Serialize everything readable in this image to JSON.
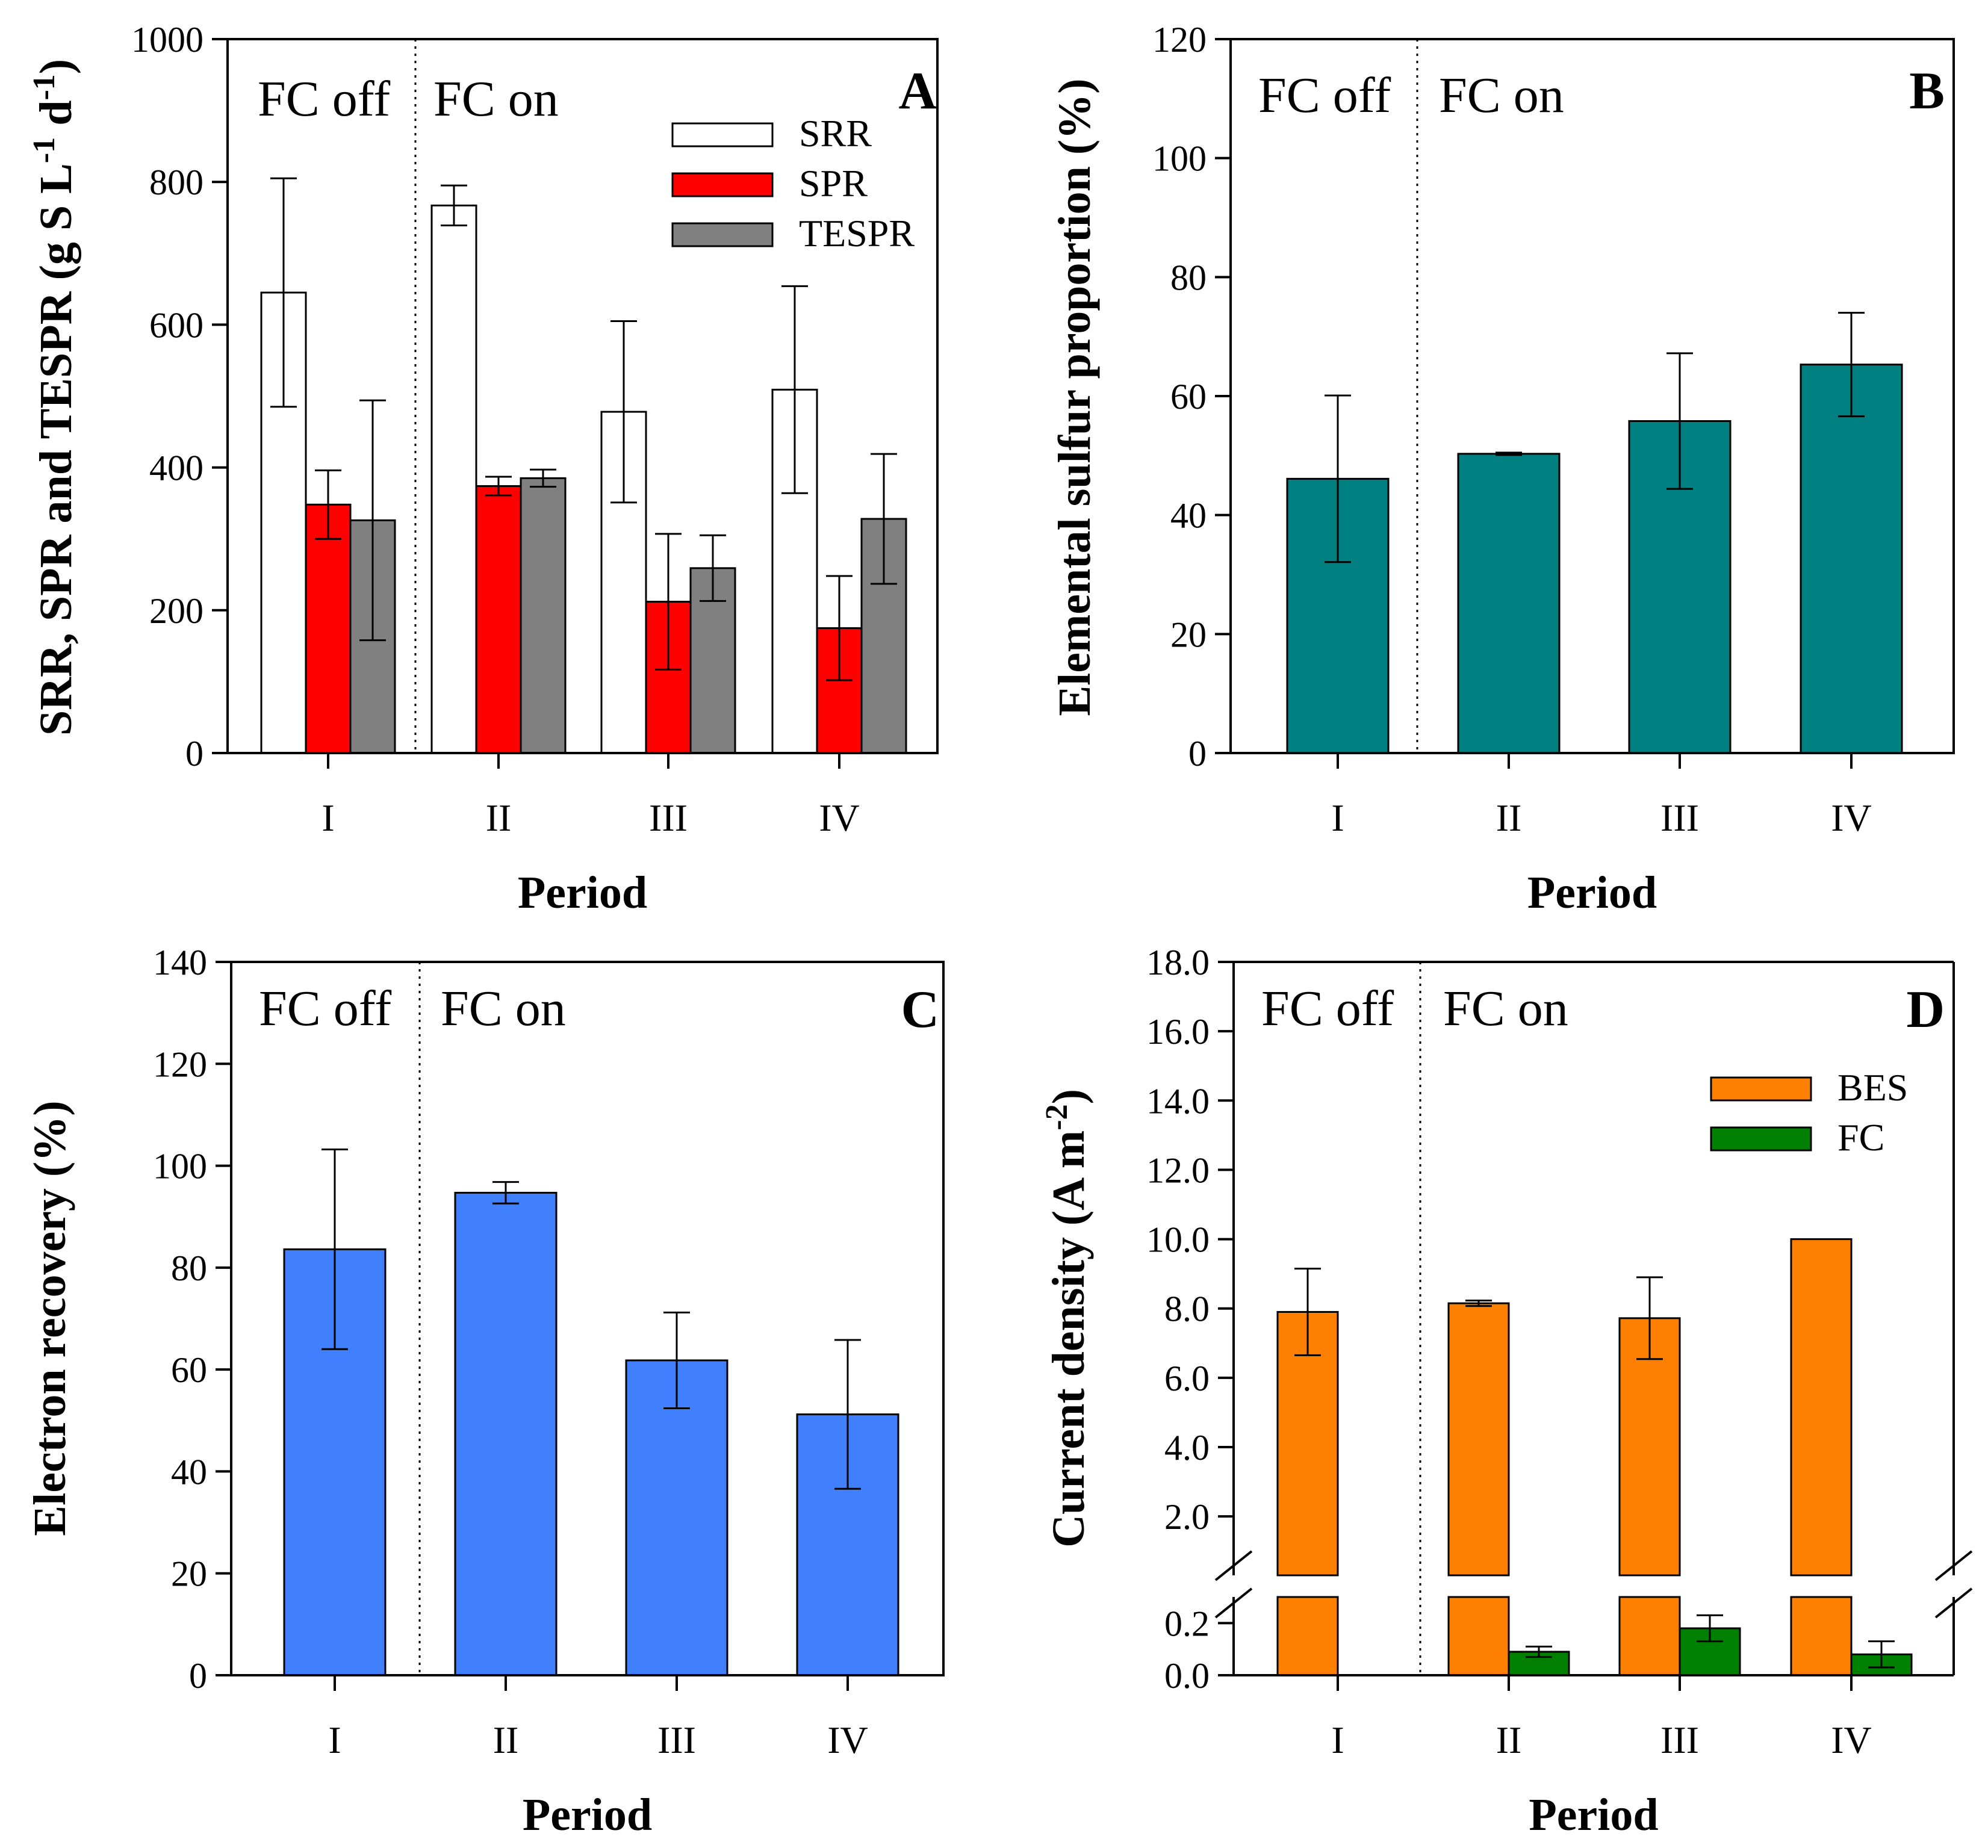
{
  "chart_data": [
    {
      "panel": "A",
      "type": "bar",
      "ylabel": "SRR, SPR and TESPR (g S L-1 d-1)",
      "ylabel_parts": {
        "base": "SRR, SPR and TESPR (g S L",
        "sup1": "-1",
        "mid": " d",
        "sup2": "-1",
        "end": ")"
      },
      "xlabel": "Period",
      "ylim": [
        0,
        1000
      ],
      "yticks": [
        "0",
        "200",
        "400",
        "600",
        "800",
        "1000"
      ],
      "categories": [
        "I",
        "II",
        "III",
        "IV"
      ],
      "series": [
        {
          "name": "SRR",
          "color": "#ffffff",
          "values": [
            645,
            767,
            478,
            509
          ],
          "errors": [
            160,
            28,
            127,
            145
          ]
        },
        {
          "name": "SPR",
          "color": "#ff0000",
          "values": [
            348,
            374,
            212,
            175
          ],
          "errors": [
            48,
            13,
            95,
            73
          ]
        },
        {
          "name": "TESPR",
          "color": "#808080",
          "values": [
            326,
            385,
            259,
            328
          ],
          "errors": [
            168,
            12,
            46,
            91
          ]
        }
      ],
      "annotations": {
        "fc_off": "FC off",
        "fc_on": "FC on"
      }
    },
    {
      "panel": "B",
      "type": "bar",
      "ylabel": "Elemental sulfur proportion (%)",
      "xlabel": "Period",
      "ylim": [
        0,
        120
      ],
      "yticks": [
        "0",
        "20",
        "40",
        "60",
        "80",
        "100",
        "120"
      ],
      "categories": [
        "I",
        "II",
        "III",
        "IV"
      ],
      "series": [
        {
          "name": "Elemental sulfur proportion",
          "color": "#008080",
          "values": [
            46.1,
            50.3,
            55.8,
            65.3
          ],
          "errors": [
            14,
            0.2,
            11.4,
            8.7
          ]
        }
      ],
      "annotations": {
        "fc_off": "FC off",
        "fc_on": "FC on"
      }
    },
    {
      "panel": "C",
      "type": "bar",
      "ylabel": "Electron recovery (%)",
      "xlabel": "Period",
      "ylim": [
        0,
        140
      ],
      "yticks": [
        "0",
        "20",
        "40",
        "60",
        "80",
        "100",
        "120",
        "140"
      ],
      "categories": [
        "I",
        "II",
        "III",
        "IV"
      ],
      "series": [
        {
          "name": "Electron recovery",
          "color": "#4080ff",
          "values": [
            83.6,
            94.7,
            61.8,
            51.2
          ],
          "errors": [
            19.6,
            2.1,
            9.4,
            14.6
          ]
        }
      ],
      "annotations": {
        "fc_off": "FC off",
        "fc_on": "FC on"
      }
    },
    {
      "panel": "D",
      "type": "bar",
      "ylabel": "Current density (A m-2)",
      "ylabel_parts": {
        "base": "Current density (A m",
        "sup1": "-2",
        "end": ")"
      },
      "xlabel": "Period",
      "broken_axis": {
        "lower": [
          0,
          0.3
        ],
        "upper": [
          0.3,
          18
        ]
      },
      "yticks_lower": [
        "0.0",
        "0.2"
      ],
      "yticks_upper": [
        "2.0",
        "4.0",
        "6.0",
        "8.0",
        "10.0",
        "12.0",
        "14.0",
        "16.0",
        "18.0"
      ],
      "categories": [
        "I",
        "II",
        "III",
        "IV"
      ],
      "series": [
        {
          "name": "BES",
          "color": "#ff8000",
          "values": [
            7.9,
            8.15,
            7.72,
            10.0
          ],
          "errors": [
            1.25,
            0.08,
            1.18,
            0.0
          ]
        },
        {
          "name": "FC",
          "color": "#008000",
          "values": [
            null,
            0.09,
            0.18,
            0.08
          ],
          "errors": [
            null,
            0.02,
            0.05,
            0.05
          ]
        }
      ],
      "annotations": {
        "fc_off": "FC off",
        "fc_on": "FC on"
      }
    }
  ]
}
